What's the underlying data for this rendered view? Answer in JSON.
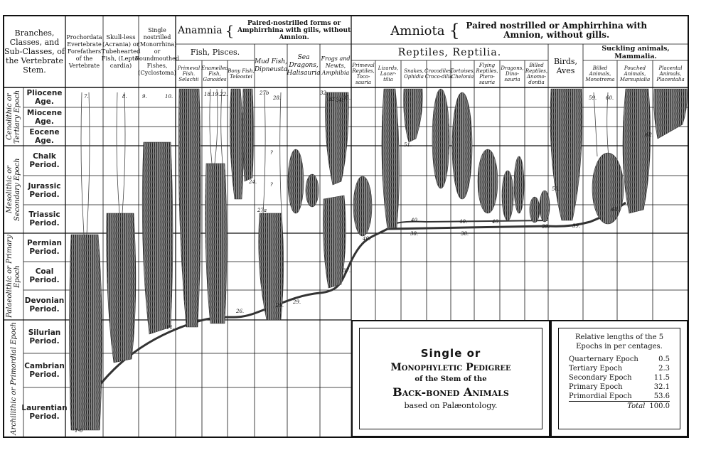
{
  "header": {
    "stem_title": "Branches, Classes, and Sub-Classes, of the Vertebrate Stem.",
    "prochordata": "Prochordata Evertebrate Forefathers of the Vertebrate",
    "skull_less": "Skull-less (Acrania) or Tubehearted Fish, (Lepto-cardia)",
    "single_nostrilled": "Single nostrilled (Monorrhina) or Roundmouthed Fishes, (Cyclostoma)",
    "anamnia": "Anamnia",
    "anamnia_desc": "Paired-nostrilled forms or Amphirrhina with gills, without Amnion.",
    "amniota": "Amniota",
    "amniota_desc": "Paired nostrilled or Amphirrhina with Amnion, without gills.",
    "fish": "Fish, Pisces.",
    "reptiles": "Reptiles, Reptilia.",
    "mammals": "Suckling animals, Mammalia.",
    "birds": "Birds, Aves",
    "subcolumns": [
      "Primeval Fish. Selachii",
      "Enamelled Fish, Ganoides",
      "Bony Fish, Teleostei",
      "Mud Fish, Dipneusta",
      "Sea Dragons, Halisauria",
      "Frogs and Newts, Amphibia",
      "Primeval Reptiles, Toco-sauria",
      "Lizards, Lacer-tilia",
      "Snakes, Ophidia",
      "Crocodiles, Croco-dilia",
      "Tortoises, Chelonia",
      "Flying Reptiles, Ptero-sauria",
      "Dragons, Dino-sauria",
      "Billed Reptiles, Anomo-dontia",
      "Billed Animals, Monotrema",
      "Pouched Animals, Marsupialia",
      "Placental Animals, Placentalia"
    ]
  },
  "epochs": [
    "Cenolithic or Tertiary Epoch",
    "Mesolithic or Secondary Epoch",
    "Palaeolithic or Primary Epoch",
    "Archilithic or Primordial Epoch"
  ],
  "periods": [
    "Pliocene Age.",
    "Miocene Age.",
    "Eocene Age.",
    "Chalk Period.",
    "Jurassic Period.",
    "Triassic Period.",
    "Permian Period.",
    "Coal Period.",
    "Devonian Period.",
    "Silurian Period.",
    "Cambrian Period.",
    "Laurentian Period."
  ],
  "branch_numbers": [
    "1-6",
    "7.",
    "8.",
    "9.",
    "10.",
    "11.",
    "26.",
    "27a",
    "27b",
    "28.",
    "29.",
    "29.",
    "32.",
    "33.",
    "34.",
    "35.",
    "37.",
    "40.",
    "40.",
    "40.",
    "40.",
    "38.",
    "38.",
    "39.",
    "39.",
    "51.",
    "58.",
    "59.",
    "60.",
    "61.",
    "62.",
    "?",
    "?",
    "24.",
    "18.19.22."
  ],
  "title_box": {
    "line1": "Single or",
    "line2": "Monophyletic Pedigree",
    "line3": "of the Stem of the",
    "line4": "Back-boned Animals",
    "line5": "based on Palæontology."
  },
  "lengths_box": {
    "heading": "Relative lengths of the 5 Epochs in per centages.",
    "rows": [
      {
        "label": "Quarternary Epoch",
        "value": "0.5"
      },
      {
        "label": "Tertiary Epoch",
        "value": "2.3"
      },
      {
        "label": "Secondary Epoch",
        "value": "11.5"
      },
      {
        "label": "Primary Epoch",
        "value": "32.1"
      },
      {
        "label": "Primordial Epoch",
        "value": "53.6"
      }
    ],
    "total_label": "Total",
    "total_value": "100.0"
  }
}
